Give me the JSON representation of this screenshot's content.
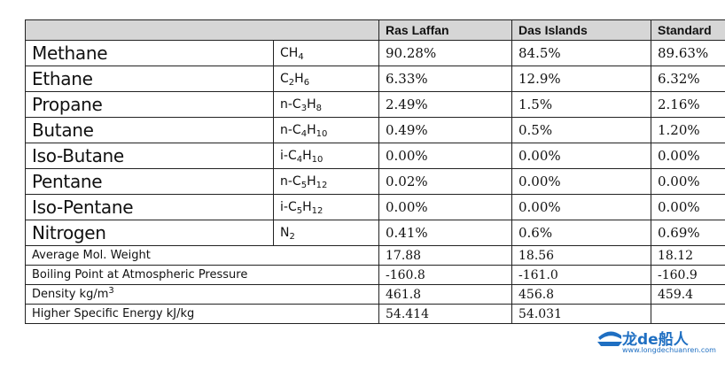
{
  "headers": [
    "",
    "Ras Laffan",
    "Das Islands",
    "Standard"
  ],
  "components": [
    {
      "name": "Methane",
      "formula_html": "CH<sub>4</sub>",
      "values": [
        "90.28%",
        "84.5%",
        "89.63%"
      ]
    },
    {
      "name": "Ethane",
      "formula_html": "C<sub>2</sub>H<sub>6</sub>",
      "values": [
        "6.33%",
        "12.9%",
        "6.32%"
      ]
    },
    {
      "name": "Propane",
      "formula_html": "n-C<sub>3</sub>H<sub>8</sub>",
      "values": [
        "2.49%",
        "1.5%",
        "2.16%"
      ]
    },
    {
      "name": "Butane",
      "formula_html": "n-C<sub>4</sub>H<sub>10</sub>",
      "values": [
        "0.49%",
        "0.5%",
        "1.20%"
      ]
    },
    {
      "name": "Iso-Butane",
      "formula_html": "i-C<sub>4</sub>H<sub>10</sub>",
      "values": [
        "0.00%",
        "0.00%",
        "0.00%"
      ]
    },
    {
      "name": "Pentane",
      "formula_html": "n-C<sub>5</sub>H<sub>12</sub>",
      "values": [
        "0.02%",
        "0.00%",
        "0.00%"
      ]
    },
    {
      "name": "Iso-Pentane",
      "formula_html": "i-C<sub>5</sub>H<sub>12</sub>",
      "values": [
        "0.00%",
        "0.00%",
        "0.00%"
      ]
    },
    {
      "name": "Nitrogen",
      "formula_html": "N<sub>2</sub>",
      "values": [
        "0.41%",
        "0.6%",
        "0.69%"
      ]
    }
  ],
  "properties": [
    {
      "name_html": "Average Mol. Weight",
      "values": [
        "17.88",
        "18.56",
        "18.12"
      ]
    },
    {
      "name_html": "Boiling Point at Atmospheric Pressure",
      "values": [
        "-160.8",
        "-161.0",
        "-160.9"
      ]
    },
    {
      "name_html": "Density kg/m<sup>3</sup>",
      "values": [
        "461.8",
        "456.8",
        "459.4"
      ]
    },
    {
      "name_html": "Higher Specific Energy kJ/kg",
      "values": [
        "54.414",
        "54.031",
        ""
      ]
    }
  ],
  "watermark": {
    "text": "龙de船人",
    "url": "www.longdechuanren.com"
  },
  "colors": {
    "header_bg": "#d6d6d6",
    "border": "#222222",
    "watermark": "#1f6fc2"
  }
}
